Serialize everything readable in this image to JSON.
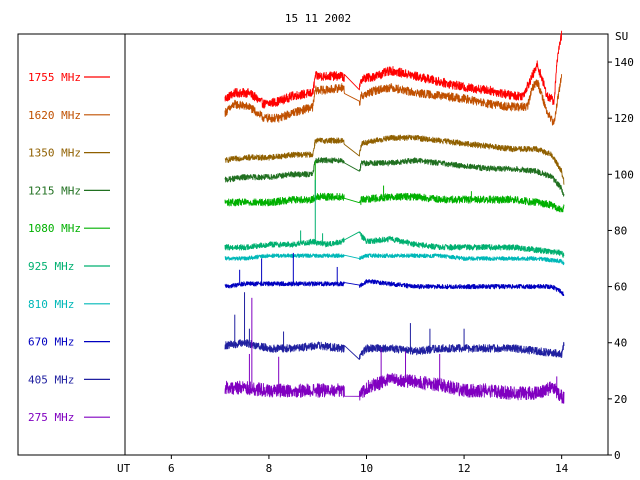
{
  "chart_data": {
    "type": "line",
    "title": "15 11 2002",
    "xlabel": "UT",
    "ylabel": "SU",
    "xlim": [
      5.05,
      14.95
    ],
    "ylim": [
      0,
      150
    ],
    "xticks": [
      6,
      8,
      10,
      12,
      14
    ],
    "yticks": [
      0,
      20,
      40,
      60,
      80,
      100,
      120,
      140
    ],
    "legend_position": "left",
    "grid": false,
    "data_gap": [
      9.55,
      9.85
    ],
    "series": [
      {
        "name": "1755 MHz",
        "color": "#ff0000",
        "noise": 1.6,
        "spikes": [],
        "points": [
          [
            7.1,
            127
          ],
          [
            7.3,
            129
          ],
          [
            7.6,
            129
          ],
          [
            7.9,
            125
          ],
          [
            8.2,
            126
          ],
          [
            8.5,
            128
          ],
          [
            8.9,
            129
          ],
          [
            8.95,
            135
          ],
          [
            9.2,
            135
          ],
          [
            9.5,
            135
          ],
          [
            9.85,
            130
          ],
          [
            9.9,
            134
          ],
          [
            10.2,
            135
          ],
          [
            10.5,
            137
          ],
          [
            11.0,
            135
          ],
          [
            11.5,
            133
          ],
          [
            12.0,
            131
          ],
          [
            12.5,
            130
          ],
          [
            13.0,
            128
          ],
          [
            13.2,
            128
          ],
          [
            13.4,
            135
          ],
          [
            13.5,
            139
          ],
          [
            13.6,
            134
          ],
          [
            13.7,
            128
          ],
          [
            13.85,
            126
          ],
          [
            13.9,
            140
          ],
          [
            14.0,
            150
          ]
        ]
      },
      {
        "name": "1620 MHz",
        "color": "#c05000",
        "noise": 1.5,
        "spikes": [],
        "points": [
          [
            7.1,
            122
          ],
          [
            7.3,
            125
          ],
          [
            7.6,
            124
          ],
          [
            7.9,
            120
          ],
          [
            8.2,
            120
          ],
          [
            8.5,
            122
          ],
          [
            8.9,
            124
          ],
          [
            8.95,
            130
          ],
          [
            9.2,
            130
          ],
          [
            9.5,
            131
          ],
          [
            9.85,
            125
          ],
          [
            9.9,
            128
          ],
          [
            10.2,
            130
          ],
          [
            10.5,
            131
          ],
          [
            11.0,
            129
          ],
          [
            11.5,
            128
          ],
          [
            12.0,
            127
          ],
          [
            12.5,
            125
          ],
          [
            13.0,
            124
          ],
          [
            13.3,
            124
          ],
          [
            13.4,
            131
          ],
          [
            13.5,
            133
          ],
          [
            13.6,
            128
          ],
          [
            13.7,
            122
          ],
          [
            13.85,
            118
          ],
          [
            13.9,
            125
          ],
          [
            14.0,
            135
          ]
        ]
      },
      {
        "name": "1350 MHz",
        "color": "#906000",
        "noise": 1.0,
        "spikes": [],
        "points": [
          [
            7.1,
            105
          ],
          [
            7.5,
            106
          ],
          [
            8.0,
            106
          ],
          [
            8.5,
            107
          ],
          [
            8.9,
            107
          ],
          [
            8.95,
            112
          ],
          [
            9.5,
            112
          ],
          [
            9.85,
            107
          ],
          [
            9.9,
            111
          ],
          [
            10.5,
            113
          ],
          [
            11.0,
            113
          ],
          [
            11.5,
            112
          ],
          [
            12.0,
            111
          ],
          [
            12.5,
            110
          ],
          [
            13.0,
            109
          ],
          [
            13.5,
            109
          ],
          [
            13.8,
            107
          ],
          [
            14.0,
            101
          ],
          [
            14.05,
            97
          ]
        ]
      },
      {
        "name": "1215 MHz",
        "color": "#207020",
        "noise": 1.0,
        "spikes": [],
        "points": [
          [
            7.1,
            98
          ],
          [
            7.5,
            99
          ],
          [
            8.0,
            99
          ],
          [
            8.5,
            100
          ],
          [
            8.9,
            100
          ],
          [
            8.95,
            105
          ],
          [
            9.5,
            105
          ],
          [
            9.85,
            101
          ],
          [
            9.9,
            104
          ],
          [
            10.5,
            104
          ],
          [
            11.0,
            105
          ],
          [
            11.5,
            104
          ],
          [
            12.0,
            103
          ],
          [
            12.5,
            102
          ],
          [
            13.0,
            102
          ],
          [
            13.5,
            101
          ],
          [
            13.8,
            99
          ],
          [
            14.0,
            95
          ],
          [
            14.05,
            92
          ]
        ]
      },
      {
        "name": "1080 MHz",
        "color": "#00b000",
        "noise": 1.3,
        "spikes": [
          [
            8.95,
            105
          ],
          [
            10.35,
            96
          ],
          [
            12.15,
            94
          ]
        ],
        "points": [
          [
            7.1,
            90
          ],
          [
            7.5,
            90
          ],
          [
            8.0,
            90
          ],
          [
            8.5,
            91
          ],
          [
            8.9,
            91
          ],
          [
            8.95,
            92
          ],
          [
            9.5,
            92
          ],
          [
            9.85,
            89
          ],
          [
            9.9,
            91
          ],
          [
            10.5,
            92
          ],
          [
            11.0,
            92
          ],
          [
            11.5,
            91
          ],
          [
            12.0,
            91
          ],
          [
            12.5,
            91
          ],
          [
            13.0,
            91
          ],
          [
            13.5,
            90
          ],
          [
            13.8,
            89
          ],
          [
            14.0,
            87
          ],
          [
            14.05,
            88
          ]
        ]
      },
      {
        "name": "925 MHz",
        "color": "#00b070",
        "noise": 1.0,
        "spikes": [
          [
            8.65,
            80
          ],
          [
            8.95,
            98
          ],
          [
            9.1,
            79
          ]
        ],
        "points": [
          [
            7.1,
            74
          ],
          [
            7.5,
            74
          ],
          [
            8.0,
            75
          ],
          [
            8.5,
            75
          ],
          [
            8.9,
            76
          ],
          [
            9.2,
            75
          ],
          [
            9.5,
            76
          ],
          [
            9.7,
            78
          ],
          [
            9.8,
            83
          ],
          [
            9.9,
            78
          ],
          [
            10.0,
            76
          ],
          [
            10.5,
            77
          ],
          [
            11.0,
            75
          ],
          [
            11.5,
            74
          ],
          [
            12.0,
            74
          ],
          [
            12.5,
            74
          ],
          [
            13.0,
            74
          ],
          [
            13.5,
            73
          ],
          [
            14.0,
            72
          ],
          [
            14.05,
            71
          ]
        ]
      },
      {
        "name": "810 MHz",
        "color": "#00b8b8",
        "noise": 0.7,
        "spikes": [],
        "points": [
          [
            7.1,
            70
          ],
          [
            7.5,
            70
          ],
          [
            8.0,
            71
          ],
          [
            8.5,
            71
          ],
          [
            9.0,
            71
          ],
          [
            9.5,
            71
          ],
          [
            9.85,
            70
          ],
          [
            10.0,
            71
          ],
          [
            10.5,
            71
          ],
          [
            11.0,
            71
          ],
          [
            11.5,
            71
          ],
          [
            12.0,
            70
          ],
          [
            12.5,
            70
          ],
          [
            13.0,
            70
          ],
          [
            13.5,
            70
          ],
          [
            14.0,
            69
          ],
          [
            14.05,
            68
          ]
        ]
      },
      {
        "name": "670 MHz",
        "color": "#0000c0",
        "noise": 0.8,
        "spikes": [
          [
            7.4,
            66
          ],
          [
            7.85,
            70
          ],
          [
            8.5,
            72
          ],
          [
            9.4,
            67
          ]
        ],
        "points": [
          [
            7.1,
            60
          ],
          [
            7.5,
            61
          ],
          [
            8.0,
            61
          ],
          [
            8.5,
            61
          ],
          [
            9.0,
            61
          ],
          [
            9.5,
            61
          ],
          [
            9.85,
            60
          ],
          [
            10.0,
            62
          ],
          [
            10.5,
            61
          ],
          [
            11.0,
            60
          ],
          [
            11.5,
            60
          ],
          [
            12.0,
            60
          ],
          [
            12.5,
            60
          ],
          [
            13.0,
            60
          ],
          [
            13.5,
            60
          ],
          [
            13.8,
            60
          ],
          [
            14.0,
            58
          ],
          [
            14.05,
            57
          ]
        ]
      },
      {
        "name": "405 MHz",
        "color": "#2020a0",
        "noise": 1.4,
        "spikes": [
          [
            7.3,
            50
          ],
          [
            7.5,
            58
          ],
          [
            7.6,
            45
          ],
          [
            8.3,
            44
          ],
          [
            10.9,
            47
          ],
          [
            11.3,
            45
          ],
          [
            12.0,
            45
          ]
        ],
        "points": [
          [
            7.1,
            39
          ],
          [
            7.5,
            40
          ],
          [
            8.0,
            38
          ],
          [
            8.5,
            38
          ],
          [
            9.0,
            39
          ],
          [
            9.5,
            38
          ],
          [
            9.85,
            35
          ],
          [
            10.0,
            38
          ],
          [
            10.5,
            38
          ],
          [
            11.0,
            37
          ],
          [
            11.5,
            38
          ],
          [
            12.0,
            38
          ],
          [
            12.5,
            38
          ],
          [
            13.0,
            38
          ],
          [
            13.5,
            37
          ],
          [
            14.0,
            36
          ],
          [
            14.05,
            40
          ]
        ]
      },
      {
        "name": "275 MHz",
        "color": "#8000c0",
        "noise": 2.4,
        "spikes": [
          [
            7.65,
            56
          ],
          [
            7.6,
            36
          ],
          [
            8.2,
            35
          ],
          [
            10.3,
            38
          ],
          [
            10.8,
            37
          ],
          [
            11.5,
            36
          ],
          [
            13.9,
            28
          ]
        ],
        "points": [
          [
            7.1,
            24
          ],
          [
            7.5,
            24
          ],
          [
            8.0,
            23
          ],
          [
            8.5,
            23
          ],
          [
            9.0,
            23
          ],
          [
            9.5,
            23
          ],
          [
            9.85,
            21
          ],
          [
            10.0,
            24
          ],
          [
            10.5,
            27
          ],
          [
            11.0,
            26
          ],
          [
            11.5,
            25
          ],
          [
            12.0,
            23
          ],
          [
            12.5,
            23
          ],
          [
            13.0,
            22
          ],
          [
            13.5,
            22
          ],
          [
            13.8,
            24
          ],
          [
            14.0,
            21
          ],
          [
            14.05,
            20
          ]
        ]
      }
    ]
  }
}
